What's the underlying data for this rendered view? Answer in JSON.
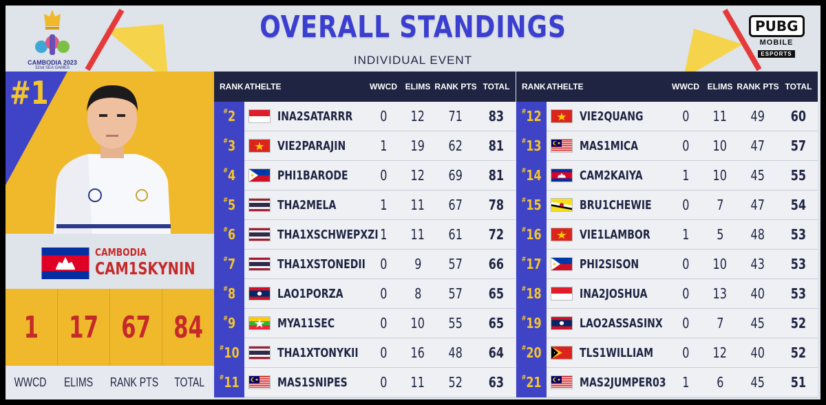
{
  "header": {
    "title": "OVERALL STANDINGS",
    "subtitle": "INDIVIDUAL EVENT",
    "games_logo": {
      "line1": "CAMBODIA 2023",
      "line2": "32nd SEA GAMES"
    },
    "pubg_logo": {
      "word": "PUBG",
      "line1": "MOBILE",
      "line2": "ESPORTS"
    }
  },
  "colors": {
    "blue": "#3f44c7",
    "navy": "#1e2442",
    "gold": "#f0b92c",
    "red": "#c52a2a"
  },
  "champion": {
    "rank": "#1",
    "country": "CAMBODIA",
    "name": "CAM1SKYNIN",
    "flag_icon": "cambodia-flag",
    "stats": {
      "wwcd": "1",
      "elims": "17",
      "rank_pts": "67",
      "total": "84"
    },
    "labels": {
      "wwcd": "WWCD",
      "elims": "ELIMS",
      "rank_pts": "RANK PTS",
      "total": "TOTAL"
    }
  },
  "table_headers": {
    "rank": "RANK",
    "athlete": "ATHELTE",
    "wwcd": "WWCD",
    "elims": "ELIMS",
    "rank_pts": "RANK PTS",
    "total": "TOTAL"
  },
  "left_rows": [
    {
      "rank": "2",
      "flag": "indonesia",
      "name": "INA2SATARRR",
      "wwcd": "0",
      "elims": "12",
      "pts": "71",
      "total": "83"
    },
    {
      "rank": "3",
      "flag": "vietnam",
      "name": "VIE2PARAJIN",
      "wwcd": "1",
      "elims": "19",
      "pts": "62",
      "total": "81"
    },
    {
      "rank": "4",
      "flag": "philippines",
      "name": "PHI1BARODE",
      "wwcd": "0",
      "elims": "12",
      "pts": "69",
      "total": "81"
    },
    {
      "rank": "5",
      "flag": "thailand",
      "name": "THA2MELA",
      "wwcd": "1",
      "elims": "11",
      "pts": "67",
      "total": "78"
    },
    {
      "rank": "6",
      "flag": "thailand",
      "name": "THA1XSCHWEPXZI",
      "wwcd": "1",
      "elims": "11",
      "pts": "61",
      "total": "72"
    },
    {
      "rank": "7",
      "flag": "thailand",
      "name": "THA1XSTONEDII",
      "wwcd": "0",
      "elims": "9",
      "pts": "57",
      "total": "66"
    },
    {
      "rank": "8",
      "flag": "laos",
      "name": "LAO1PORZA",
      "wwcd": "0",
      "elims": "8",
      "pts": "57",
      "total": "65"
    },
    {
      "rank": "9",
      "flag": "myanmar",
      "name": "MYA11SEC",
      "wwcd": "0",
      "elims": "10",
      "pts": "55",
      "total": "65"
    },
    {
      "rank": "10",
      "flag": "thailand",
      "name": "THA1XTONYKII",
      "wwcd": "0",
      "elims": "16",
      "pts": "48",
      "total": "64"
    },
    {
      "rank": "11",
      "flag": "malaysia",
      "name": "MAS1SNIPES",
      "wwcd": "0",
      "elims": "11",
      "pts": "52",
      "total": "63"
    }
  ],
  "right_rows": [
    {
      "rank": "12",
      "flag": "vietnam",
      "name": "VIE2QUANG",
      "wwcd": "0",
      "elims": "11",
      "pts": "49",
      "total": "60"
    },
    {
      "rank": "13",
      "flag": "malaysia",
      "name": "MAS1MICA",
      "wwcd": "0",
      "elims": "10",
      "pts": "47",
      "total": "57"
    },
    {
      "rank": "14",
      "flag": "cambodia",
      "name": "CAM2KAIYA",
      "wwcd": "1",
      "elims": "10",
      "pts": "45",
      "total": "55"
    },
    {
      "rank": "15",
      "flag": "brunei",
      "name": "BRU1CHEWIE",
      "wwcd": "0",
      "elims": "7",
      "pts": "47",
      "total": "54"
    },
    {
      "rank": "16",
      "flag": "vietnam",
      "name": "VIE1LAMBOR",
      "wwcd": "1",
      "elims": "5",
      "pts": "48",
      "total": "53"
    },
    {
      "rank": "17",
      "flag": "philippines",
      "name": "PHI2SISON",
      "wwcd": "0",
      "elims": "10",
      "pts": "43",
      "total": "53"
    },
    {
      "rank": "18",
      "flag": "indonesia",
      "name": "INA2JOSHUA",
      "wwcd": "0",
      "elims": "13",
      "pts": "40",
      "total": "53"
    },
    {
      "rank": "19",
      "flag": "laos",
      "name": "LAO2ASSASINX",
      "wwcd": "0",
      "elims": "7",
      "pts": "45",
      "total": "52"
    },
    {
      "rank": "20",
      "flag": "timor-leste",
      "name": "TLS1WILLIAM",
      "wwcd": "0",
      "elims": "12",
      "pts": "40",
      "total": "52"
    },
    {
      "rank": "21",
      "flag": "malaysia",
      "name": "MAS2JUMPER03",
      "wwcd": "1",
      "elims": "6",
      "pts": "45",
      "total": "51"
    }
  ]
}
